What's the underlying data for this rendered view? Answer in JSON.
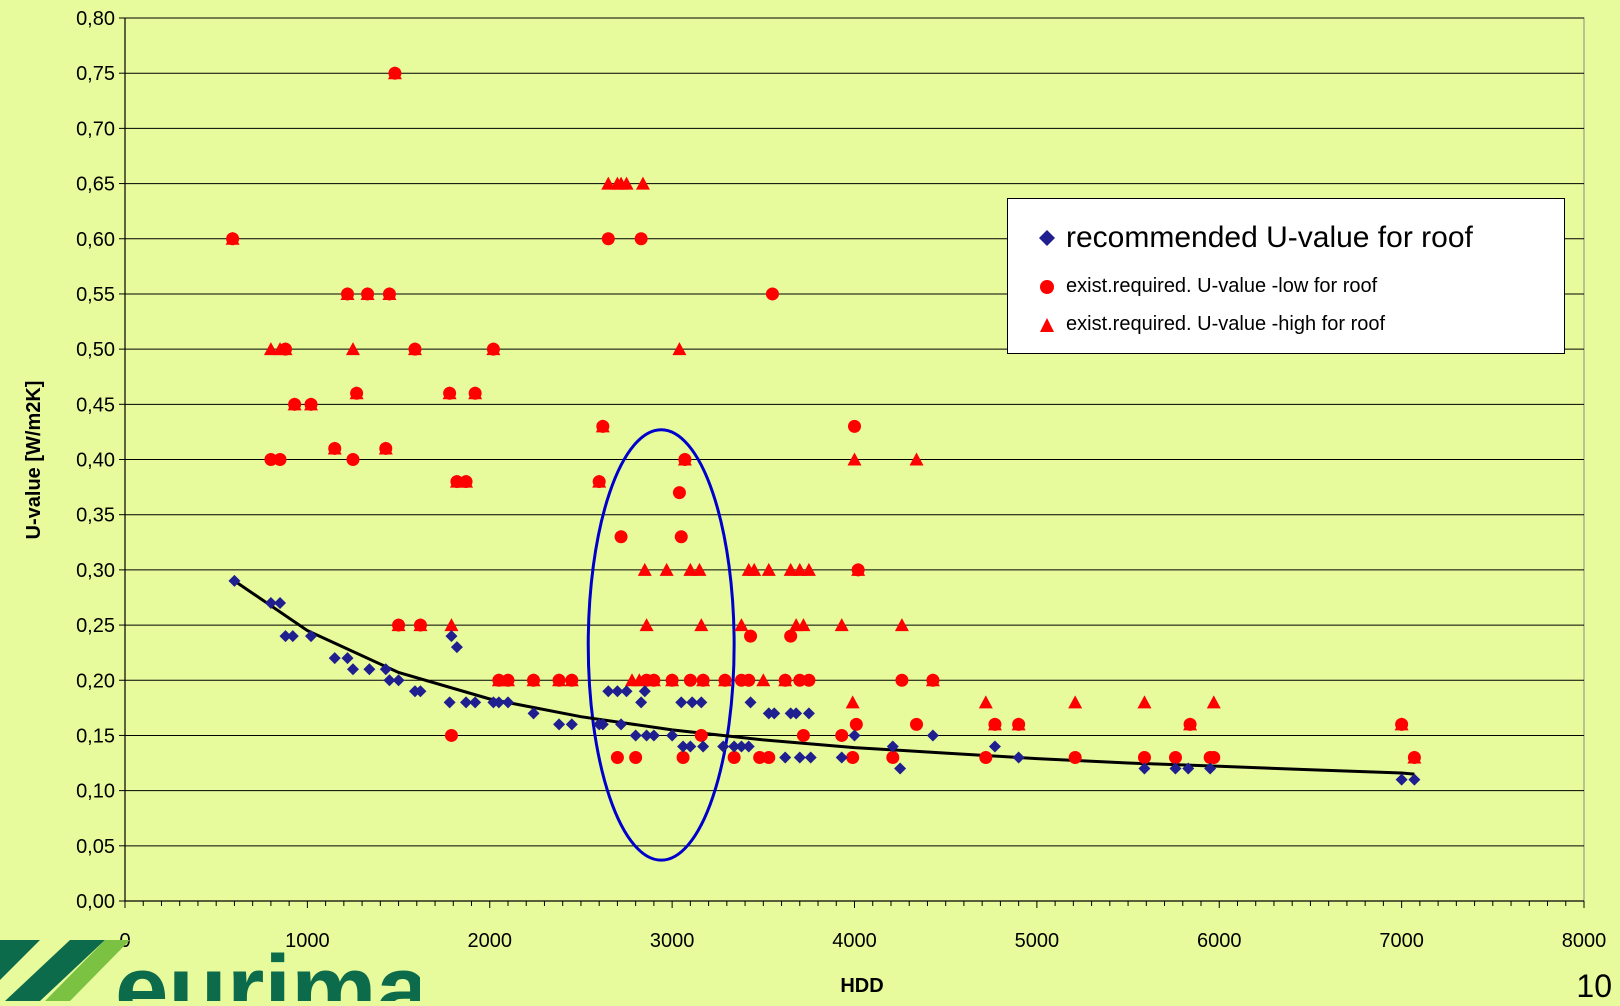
{
  "chart_data": {
    "type": "scatter",
    "title": "",
    "xlabel": "HDD",
    "ylabel": "U-value [W/m2K]",
    "xlim": [
      0,
      8000
    ],
    "ylim": [
      0,
      0.8
    ],
    "x_ticks": [
      "0",
      "1000",
      "2000",
      "3000",
      "4000",
      "5000",
      "6000",
      "7000",
      "8000"
    ],
    "y_ticks": [
      "0,00",
      "0,05",
      "0,10",
      "0,15",
      "0,20",
      "0,25",
      "0,30",
      "0,35",
      "0,40",
      "0,45",
      "0,50",
      "0,55",
      "0,60",
      "0,65",
      "0,70",
      "0,75",
      "0,80"
    ],
    "grid": "horizontal",
    "legend_position": "top-right",
    "series": [
      {
        "name": "recommended U-value for roof",
        "marker": "diamond",
        "color": "#1F1F8F",
        "points": [
          [
            600,
            0.29
          ],
          [
            800,
            0.27
          ],
          [
            850,
            0.27
          ],
          [
            880,
            0.24
          ],
          [
            920,
            0.24
          ],
          [
            1020,
            0.24
          ],
          [
            1150,
            0.22
          ],
          [
            1220,
            0.22
          ],
          [
            1250,
            0.21
          ],
          [
            1340,
            0.21
          ],
          [
            1430,
            0.21
          ],
          [
            1450,
            0.2
          ],
          [
            1500,
            0.2
          ],
          [
            1590,
            0.19
          ],
          [
            1620,
            0.19
          ],
          [
            1780,
            0.18
          ],
          [
            1790,
            0.24
          ],
          [
            1820,
            0.23
          ],
          [
            1870,
            0.18
          ],
          [
            1920,
            0.18
          ],
          [
            2020,
            0.18
          ],
          [
            2050,
            0.18
          ],
          [
            2100,
            0.18
          ],
          [
            2240,
            0.17
          ],
          [
            2380,
            0.16
          ],
          [
            2450,
            0.16
          ],
          [
            2600,
            0.16
          ],
          [
            2620,
            0.16
          ],
          [
            2650,
            0.19
          ],
          [
            2700,
            0.19
          ],
          [
            2720,
            0.16
          ],
          [
            2750,
            0.19
          ],
          [
            2800,
            0.15
          ],
          [
            2830,
            0.18
          ],
          [
            2850,
            0.19
          ],
          [
            2860,
            0.15
          ],
          [
            2900,
            0.15
          ],
          [
            3000,
            0.15
          ],
          [
            3050,
            0.18
          ],
          [
            3060,
            0.14
          ],
          [
            3100,
            0.14
          ],
          [
            3110,
            0.18
          ],
          [
            3160,
            0.18
          ],
          [
            3170,
            0.14
          ],
          [
            3280,
            0.14
          ],
          [
            3340,
            0.14
          ],
          [
            3380,
            0.14
          ],
          [
            3420,
            0.14
          ],
          [
            3430,
            0.18
          ],
          [
            3530,
            0.17
          ],
          [
            3560,
            0.17
          ],
          [
            3620,
            0.13
          ],
          [
            3650,
            0.17
          ],
          [
            3680,
            0.17
          ],
          [
            3700,
            0.13
          ],
          [
            3750,
            0.17
          ],
          [
            3760,
            0.13
          ],
          [
            3930,
            0.13
          ],
          [
            4000,
            0.15
          ],
          [
            4210,
            0.14
          ],
          [
            4250,
            0.12
          ],
          [
            4430,
            0.15
          ],
          [
            4770,
            0.14
          ],
          [
            4900,
            0.13
          ],
          [
            5590,
            0.12
          ],
          [
            5760,
            0.12
          ],
          [
            5830,
            0.12
          ],
          [
            5950,
            0.12
          ],
          [
            7000,
            0.11
          ],
          [
            7070,
            0.11
          ]
        ]
      },
      {
        "name": "exist.required. U-value -low for roof",
        "marker": "circle",
        "color": "#FF0000",
        "points": [
          [
            590,
            0.6
          ],
          [
            800,
            0.4
          ],
          [
            850,
            0.4
          ],
          [
            880,
            0.5
          ],
          [
            930,
            0.45
          ],
          [
            1020,
            0.45
          ],
          [
            1150,
            0.41
          ],
          [
            1220,
            0.55
          ],
          [
            1250,
            0.4
          ],
          [
            1270,
            0.46
          ],
          [
            1330,
            0.55
          ],
          [
            1430,
            0.41
          ],
          [
            1450,
            0.55
          ],
          [
            1480,
            0.75
          ],
          [
            1500,
            0.25
          ],
          [
            1590,
            0.5
          ],
          [
            1620,
            0.25
          ],
          [
            1780,
            0.46
          ],
          [
            1790,
            0.15
          ],
          [
            1820,
            0.38
          ],
          [
            1870,
            0.38
          ],
          [
            1920,
            0.46
          ],
          [
            2020,
            0.5
          ],
          [
            2050,
            0.2
          ],
          [
            2100,
            0.2
          ],
          [
            2240,
            0.2
          ],
          [
            2380,
            0.2
          ],
          [
            2450,
            0.2
          ],
          [
            2600,
            0.38
          ],
          [
            2620,
            0.43
          ],
          [
            2650,
            0.6
          ],
          [
            2700,
            0.13
          ],
          [
            2720,
            0.33
          ],
          [
            2800,
            0.13
          ],
          [
            2830,
            0.6
          ],
          [
            2860,
            0.2
          ],
          [
            2900,
            0.2
          ],
          [
            3000,
            0.2
          ],
          [
            3040,
            0.37
          ],
          [
            3050,
            0.33
          ],
          [
            3070,
            0.4
          ],
          [
            3060,
            0.13
          ],
          [
            3100,
            0.2
          ],
          [
            3160,
            0.15
          ],
          [
            3170,
            0.2
          ],
          [
            3290,
            0.2
          ],
          [
            3340,
            0.13
          ],
          [
            3380,
            0.2
          ],
          [
            3420,
            0.2
          ],
          [
            3430,
            0.24
          ],
          [
            3480,
            0.13
          ],
          [
            3530,
            0.13
          ],
          [
            3550,
            0.55
          ],
          [
            3620,
            0.2
          ],
          [
            3650,
            0.24
          ],
          [
            3700,
            0.2
          ],
          [
            3720,
            0.15
          ],
          [
            3750,
            0.2
          ],
          [
            3930,
            0.15
          ],
          [
            3990,
            0.13
          ],
          [
            4000,
            0.43
          ],
          [
            4010,
            0.16
          ],
          [
            4020,
            0.3
          ],
          [
            4210,
            0.13
          ],
          [
            4260,
            0.2
          ],
          [
            4340,
            0.16
          ],
          [
            4430,
            0.2
          ],
          [
            4720,
            0.13
          ],
          [
            4770,
            0.16
          ],
          [
            4900,
            0.16
          ],
          [
            5210,
            0.13
          ],
          [
            5590,
            0.13
          ],
          [
            5760,
            0.13
          ],
          [
            5840,
            0.16
          ],
          [
            5950,
            0.13
          ],
          [
            5970,
            0.13
          ],
          [
            7000,
            0.16
          ],
          [
            7070,
            0.13
          ]
        ]
      },
      {
        "name": "exist.required. U-value -high for roof",
        "marker": "triangle",
        "color": "#FF0000",
        "points": [
          [
            590,
            0.6
          ],
          [
            800,
            0.5
          ],
          [
            850,
            0.5
          ],
          [
            880,
            0.5
          ],
          [
            930,
            0.45
          ],
          [
            1020,
            0.45
          ],
          [
            1150,
            0.41
          ],
          [
            1220,
            0.55
          ],
          [
            1250,
            0.5
          ],
          [
            1270,
            0.46
          ],
          [
            1330,
            0.55
          ],
          [
            1430,
            0.41
          ],
          [
            1450,
            0.55
          ],
          [
            1480,
            0.75
          ],
          [
            1500,
            0.25
          ],
          [
            1590,
            0.5
          ],
          [
            1620,
            0.25
          ],
          [
            1780,
            0.46
          ],
          [
            1790,
            0.25
          ],
          [
            1820,
            0.38
          ],
          [
            1870,
            0.38
          ],
          [
            1920,
            0.46
          ],
          [
            2020,
            0.5
          ],
          [
            2050,
            0.2
          ],
          [
            2100,
            0.2
          ],
          [
            2240,
            0.2
          ],
          [
            2380,
            0.2
          ],
          [
            2450,
            0.2
          ],
          [
            2600,
            0.38
          ],
          [
            2620,
            0.43
          ],
          [
            2650,
            0.65
          ],
          [
            2700,
            0.65
          ],
          [
            2720,
            0.65
          ],
          [
            2750,
            0.65
          ],
          [
            2780,
            0.2
          ],
          [
            2820,
            0.2
          ],
          [
            2840,
            0.65
          ],
          [
            2850,
            0.3
          ],
          [
            2860,
            0.25
          ],
          [
            2900,
            0.2
          ],
          [
            2970,
            0.3
          ],
          [
            3000,
            0.2
          ],
          [
            3040,
            0.5
          ],
          [
            3070,
            0.4
          ],
          [
            3100,
            0.3
          ],
          [
            3150,
            0.3
          ],
          [
            3160,
            0.25
          ],
          [
            3170,
            0.2
          ],
          [
            3290,
            0.2
          ],
          [
            3380,
            0.25
          ],
          [
            3420,
            0.3
          ],
          [
            3450,
            0.3
          ],
          [
            3500,
            0.2
          ],
          [
            3530,
            0.3
          ],
          [
            3620,
            0.2
          ],
          [
            3650,
            0.3
          ],
          [
            3680,
            0.25
          ],
          [
            3700,
            0.3
          ],
          [
            3720,
            0.25
          ],
          [
            3750,
            0.3
          ],
          [
            3930,
            0.25
          ],
          [
            3990,
            0.18
          ],
          [
            4000,
            0.4
          ],
          [
            4020,
            0.3
          ],
          [
            4260,
            0.25
          ],
          [
            4340,
            0.4
          ],
          [
            4430,
            0.2
          ],
          [
            4720,
            0.18
          ],
          [
            4770,
            0.16
          ],
          [
            4900,
            0.16
          ],
          [
            5210,
            0.18
          ],
          [
            5590,
            0.18
          ],
          [
            5840,
            0.16
          ],
          [
            5970,
            0.18
          ],
          [
            7000,
            0.16
          ],
          [
            7070,
            0.13
          ]
        ]
      }
    ],
    "trendline": {
      "color": "#000000",
      "points": [
        [
          600,
          0.29
        ],
        [
          1000,
          0.245
        ],
        [
          1500,
          0.207
        ],
        [
          2000,
          0.183
        ],
        [
          2500,
          0.167
        ],
        [
          3000,
          0.155
        ],
        [
          3500,
          0.146
        ],
        [
          4000,
          0.139
        ],
        [
          4500,
          0.134
        ],
        [
          5000,
          0.129
        ],
        [
          5500,
          0.125
        ],
        [
          6000,
          0.122
        ],
        [
          6500,
          0.119
        ],
        [
          7000,
          0.116
        ],
        [
          7070,
          0.115
        ]
      ]
    },
    "highlight_ellipse": {
      "color": "#0000CC",
      "cx": 2940,
      "cy": 0.232,
      "rx": 400,
      "ry": 0.195
    }
  },
  "footer": {
    "logo_text": "eurima",
    "page_number": "10"
  }
}
